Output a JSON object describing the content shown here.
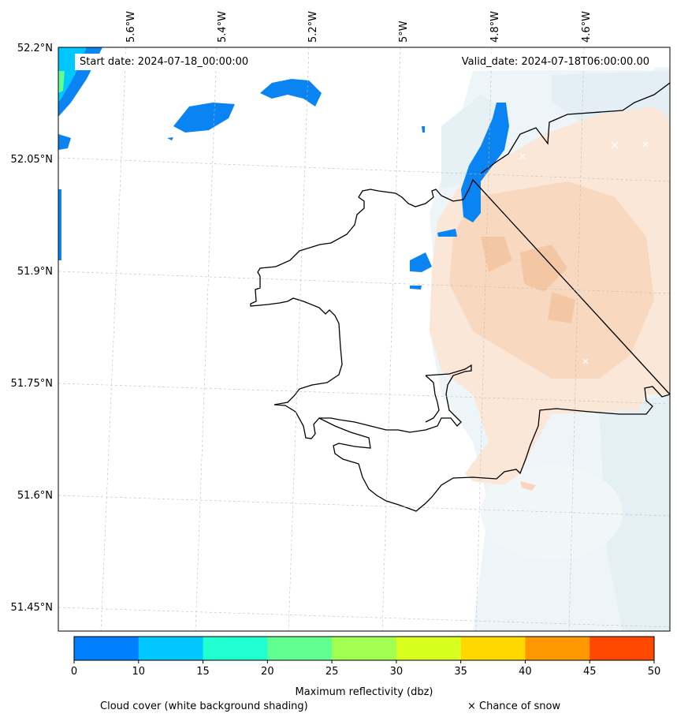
{
  "info": {
    "start_date": "Start date: 2024-07-18_00:00:00",
    "valid_date": "Valid_date: 2024-07-18T06:00:00.00"
  },
  "axes": {
    "lon_labels": [
      "5.6°W",
      "5.4°W",
      "5.2°W",
      "5°W",
      "4.8°W",
      "4.6°W"
    ],
    "lat_labels": [
      "52.2°N",
      "52.05°N",
      "51.9°N",
      "51.75°N",
      "51.6°N",
      "51.45°N"
    ]
  },
  "colorbar": {
    "title": "Maximum reflectivity (dbz)",
    "ticks": [
      "0",
      "10",
      "15",
      "20",
      "25",
      "30",
      "35",
      "40",
      "45",
      "50"
    ],
    "colors": [
      "#0080ff",
      "#00c8ff",
      "#20ffd0",
      "#60ff90",
      "#a0ff50",
      "#d8ff20",
      "#ffd800",
      "#ff9800",
      "#ff4800"
    ]
  },
  "legend": {
    "cloud_note": "Cloud cover (white background shading)",
    "snow_note": "× Chance of snow"
  }
}
